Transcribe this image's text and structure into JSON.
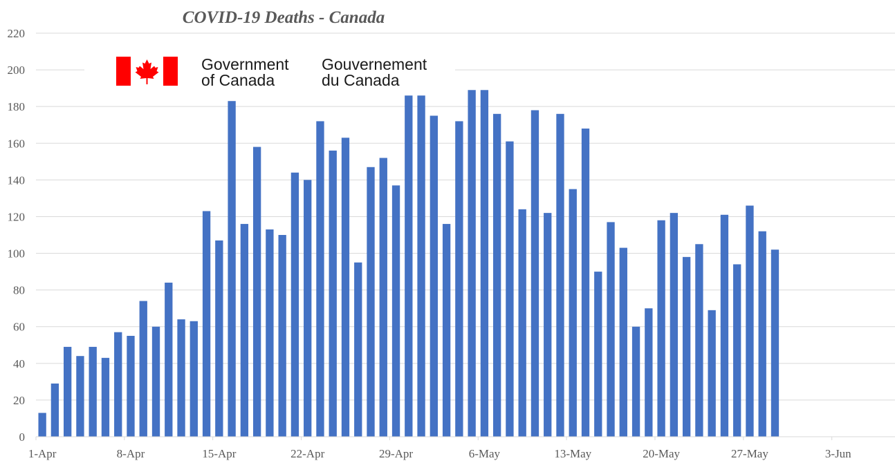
{
  "logo": {
    "en_line1": "Government",
    "en_line2": "of Canada",
    "fr_line1": "Gouvernement",
    "fr_line2": "du Canada",
    "flag_red": "#ff0000"
  },
  "chart_data": {
    "type": "bar",
    "title": "COVID-19 Deaths - Canada",
    "xlabel": "",
    "ylabel": "",
    "ylim": [
      0,
      220
    ],
    "yticks": [
      0,
      20,
      40,
      60,
      80,
      100,
      120,
      140,
      160,
      180,
      200,
      220
    ],
    "grid": true,
    "bar_color": "#4472c4",
    "x_start": "2020-04-01",
    "x_end": "2020-06-07",
    "x_tick_labels": [
      "1-Apr",
      "8-Apr",
      "15-Apr",
      "22-Apr",
      "29-Apr",
      "6-May",
      "13-May",
      "20-May",
      "27-May",
      "3-Jun"
    ],
    "categories": [
      "2020-04-01",
      "2020-04-02",
      "2020-04-03",
      "2020-04-04",
      "2020-04-05",
      "2020-04-06",
      "2020-04-07",
      "2020-04-08",
      "2020-04-09",
      "2020-04-10",
      "2020-04-11",
      "2020-04-12",
      "2020-04-13",
      "2020-04-14",
      "2020-04-15",
      "2020-04-16",
      "2020-04-17",
      "2020-04-18",
      "2020-04-19",
      "2020-04-20",
      "2020-04-21",
      "2020-04-22",
      "2020-04-23",
      "2020-04-24",
      "2020-04-25",
      "2020-04-26",
      "2020-04-27",
      "2020-04-28",
      "2020-04-29",
      "2020-04-30",
      "2020-05-01",
      "2020-05-02",
      "2020-05-03",
      "2020-05-04",
      "2020-05-05",
      "2020-05-06",
      "2020-05-07",
      "2020-05-08",
      "2020-05-09",
      "2020-05-10",
      "2020-05-11",
      "2020-05-12",
      "2020-05-13",
      "2020-05-14",
      "2020-05-15",
      "2020-05-16",
      "2020-05-17",
      "2020-05-18",
      "2020-05-19",
      "2020-05-20",
      "2020-05-21",
      "2020-05-22",
      "2020-05-23",
      "2020-05-24",
      "2020-05-25",
      "2020-05-26",
      "2020-05-27",
      "2020-05-28",
      "2020-05-29"
    ],
    "values": [
      13,
      29,
      49,
      44,
      49,
      43,
      57,
      55,
      74,
      60,
      84,
      64,
      63,
      123,
      107,
      183,
      116,
      158,
      113,
      110,
      144,
      140,
      172,
      156,
      163,
      95,
      147,
      152,
      137,
      186,
      186,
      175,
      116,
      172,
      189,
      189,
      176,
      161,
      124,
      178,
      122,
      176,
      135,
      168,
      90,
      117,
      103,
      60,
      70,
      118,
      122,
      98,
      105,
      69,
      121,
      94,
      126,
      112,
      102
    ]
  }
}
